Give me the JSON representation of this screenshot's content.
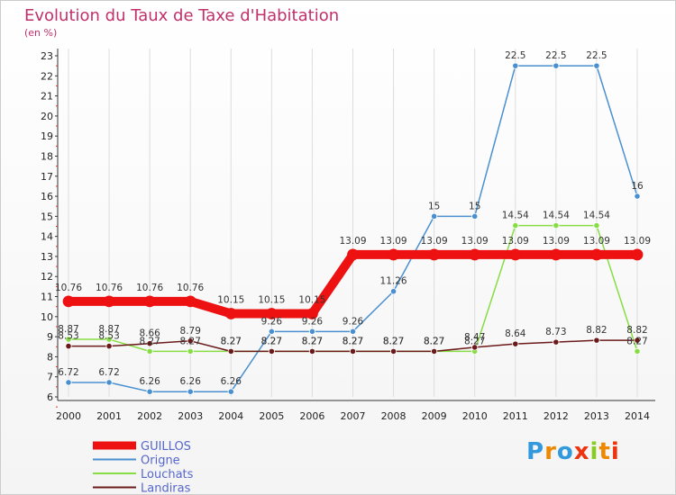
{
  "chart_data": {
    "type": "line",
    "title": "Evolution du Taux de Taxe d'Habitation",
    "subtitle": "(en %)",
    "x": [
      "2000",
      "2001",
      "2002",
      "2003",
      "2004",
      "2005",
      "2006",
      "2007",
      "2008",
      "2009",
      "2010",
      "2011",
      "2012",
      "2013",
      "2014"
    ],
    "ylim": [
      6,
      23
    ],
    "yticks": [
      6,
      7,
      8,
      9,
      10,
      11,
      12,
      13,
      14,
      15,
      16,
      17,
      18,
      19,
      20,
      21,
      22,
      23
    ],
    "grid": "vertical",
    "legend_position": "bottom-left",
    "series": [
      {
        "name": "GUILLOS",
        "color": "#ee1111",
        "values": [
          10.76,
          10.76,
          10.76,
          10.76,
          10.15,
          10.15,
          10.15,
          13.09,
          13.09,
          13.09,
          13.09,
          13.09,
          13.09,
          13.09,
          13.09
        ],
        "labels": [
          "10.76",
          "10.76",
          "10.76",
          "10.76",
          "10.15",
          "10.15",
          "10.15",
          "13.09",
          "13.09",
          "13.09",
          "13.09",
          "13.09",
          "13.09",
          "13.09",
          "13.09"
        ]
      },
      {
        "name": "Origne",
        "color": "#4a90d0",
        "values": [
          6.72,
          6.72,
          6.26,
          6.26,
          6.26,
          9.26,
          9.26,
          9.26,
          11.26,
          15,
          15,
          22.5,
          22.5,
          22.5,
          16
        ],
        "labels": [
          "6.72",
          "6.72",
          "6.26",
          "6.26",
          "6.26",
          "9.26",
          "9.26",
          "9.26",
          "11.26",
          "15",
          "15",
          "22.5",
          "22.5",
          "22.5",
          "16"
        ]
      },
      {
        "name": "Louchats",
        "color": "#88dd44",
        "values": [
          8.87,
          8.87,
          8.27,
          8.27,
          8.27,
          8.27,
          8.27,
          8.27,
          8.27,
          8.27,
          8.27,
          14.54,
          14.54,
          14.54,
          8.27
        ],
        "labels": [
          "8.87",
          "8.87",
          "8.27",
          "8.27",
          "8.27",
          "8.27",
          "8.27",
          "8.27",
          "8.27",
          "8.27",
          "8.27",
          "14.54",
          "14.54",
          "14.54",
          "8.27"
        ]
      },
      {
        "name": "Landiras",
        "color": "#6b1a1a",
        "values": [
          8.53,
          8.53,
          8.66,
          8.79,
          8.27,
          8.27,
          8.27,
          8.27,
          8.27,
          8.27,
          8.47,
          8.64,
          8.73,
          8.82,
          8.82
        ],
        "labels": [
          "8.53",
          "8.53",
          "8.66",
          "8.79",
          "8.27",
          "8.27",
          "8.27",
          "8.27",
          "8.27",
          "8.27",
          "8.47",
          "8.64",
          "8.73",
          "8.82",
          "8.82"
        ]
      }
    ]
  },
  "brand": {
    "text": "Proxiti",
    "colors": [
      "#3399dd",
      "#ee8800",
      "#3399dd",
      "#ee3311",
      "#88cc22",
      "#ee8800",
      "#ee3311"
    ]
  }
}
